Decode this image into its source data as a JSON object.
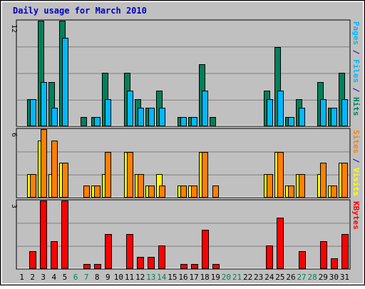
{
  "chart_data": {
    "type": "bar",
    "title": "Daily usage for March 2010",
    "categories": [
      "1",
      "2",
      "3",
      "4",
      "5",
      "6",
      "7",
      "8",
      "9",
      "10",
      "11",
      "12",
      "13",
      "14",
      "15",
      "16",
      "17",
      "18",
      "19",
      "20",
      "21",
      "22",
      "23",
      "24",
      "25",
      "26",
      "27",
      "28",
      "29",
      "30",
      "31"
    ],
    "weekend_days": [
      "6",
      "7",
      "13",
      "14",
      "20",
      "21",
      "27",
      "28"
    ],
    "panels": [
      {
        "id": "hits-files-pages",
        "ylim": [
          0,
          12
        ],
        "max_label": "12",
        "side_label": [
          {
            "text": "Pages",
            "color": "#00b8ff"
          },
          {
            "text": " / ",
            "color": "#0000c0"
          },
          {
            "text": "Files",
            "color": "#00b8ff"
          },
          {
            "text": " / ",
            "color": "#0000c0"
          },
          {
            "text": "Hits",
            "color": "#00805a"
          }
        ],
        "series": [
          {
            "name": "Hits",
            "color": "#00805a",
            "values": [
              0,
              3,
              12,
              5,
              12,
              0,
              1,
              1,
              6,
              0,
              6,
              3,
              2,
              4,
              0,
              1,
              1,
              7,
              1,
              0,
              0,
              0,
              0,
              4,
              9,
              1,
              3,
              0,
              5,
              2,
              6
            ]
          },
          {
            "name": "Files",
            "color": "#00b8ff",
            "values": [
              0,
              3,
              5,
              2,
              10,
              0,
              0,
              1,
              3,
              0,
              4,
              2,
              2,
              2,
              0,
              1,
              1,
              4,
              0,
              0,
              0,
              0,
              0,
              3,
              4,
              1,
              2,
              0,
              3,
              2,
              3
            ]
          }
        ]
      },
      {
        "id": "visits-sites",
        "ylim": [
          0,
          6
        ],
        "max_label": "6",
        "side_label": [
          {
            "text": "Sites",
            "color": "#ff8000"
          },
          {
            "text": " / ",
            "color": "#0000c0"
          },
          {
            "text": "Visits",
            "color": "#ffff00"
          }
        ],
        "series": [
          {
            "name": "Visits",
            "color": "#ffff00",
            "values": [
              0,
              2,
              5,
              2,
              3,
              0,
              0,
              1,
              2,
              0,
              4,
              2,
              1,
              2,
              0,
              1,
              1,
              4,
              0,
              0,
              0,
              0,
              0,
              2,
              4,
              1,
              2,
              0,
              2,
              1,
              3
            ]
          },
          {
            "name": "Sites",
            "color": "#ff8000",
            "values": [
              0,
              2,
              6,
              5,
              3,
              0,
              1,
              1,
              4,
              0,
              4,
              2,
              1,
              1,
              0,
              1,
              1,
              4,
              1,
              0,
              0,
              0,
              0,
              2,
              4,
              1,
              2,
              0,
              3,
              1,
              3
            ]
          }
        ]
      },
      {
        "id": "kbytes",
        "ylim": [
          0,
          3
        ],
        "max_label": "3",
        "side_label": [
          {
            "text": "KBytes",
            "color": "#ff0000"
          }
        ],
        "series": [
          {
            "name": "KBytes",
            "color": "#ff0000",
            "values": [
              0,
              0.75,
              3,
              1.2,
              3,
              0,
              0.2,
              0.2,
              1.5,
              0,
              1.5,
              0.5,
              0.5,
              1,
              0,
              0.2,
              0.2,
              1.7,
              0.2,
              0,
              0,
              0,
              0,
              1,
              2.25,
              0,
              0.75,
              0,
              1.2,
              0.45,
              1.5
            ]
          }
        ]
      }
    ],
    "grid": true,
    "legend": "right-side"
  },
  "colors": {
    "plot_bg": "#c0c0c0",
    "frame_bg": "#c0c0c0",
    "title_color": "#0000c0",
    "weekday_label": "#000000",
    "weekend_label": "#00805a",
    "gridline": "#808080"
  }
}
